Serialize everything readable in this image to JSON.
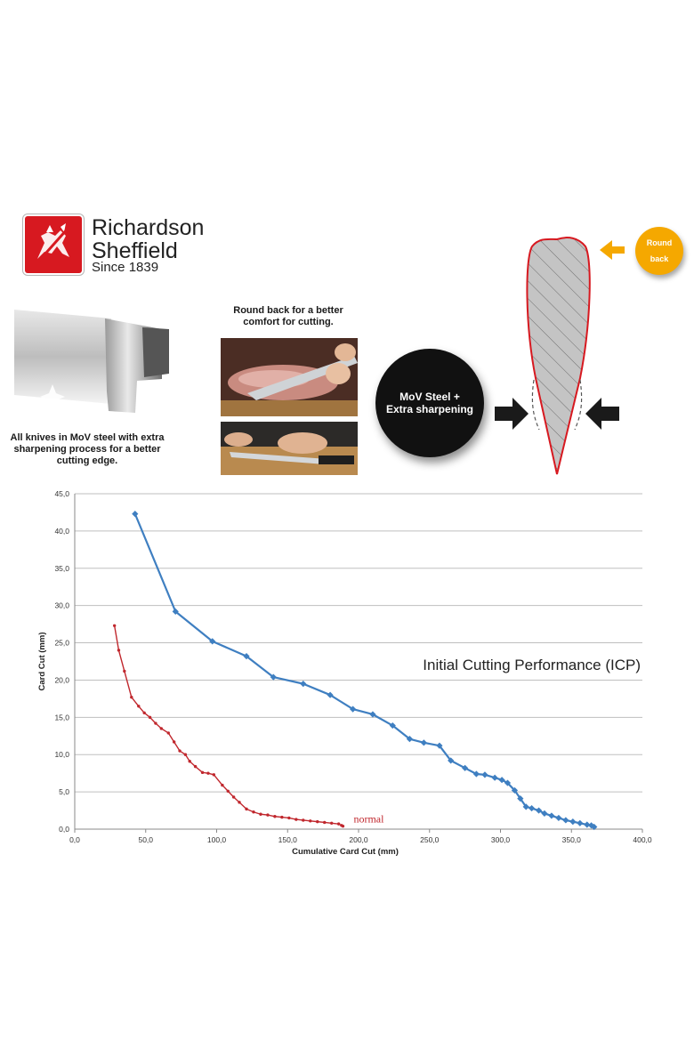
{
  "brand": {
    "line1": "Richardson",
    "line2": "Sheffield",
    "line3": "Since 1839",
    "logo_color": "#d71920"
  },
  "features": {
    "left_caption": "All knives in MoV steel with extra sharpening process for a better cutting edge.",
    "middle_caption": "Round back for a better comfort for cutting.",
    "circle_line1": "MoV Steel +",
    "circle_line2": "Extra sharpening",
    "badge_line1": "Round",
    "badge_line2": "back",
    "badge_color": "#f5a800",
    "blade_outline_color": "#d71920"
  },
  "chart_data": {
    "type": "line",
    "title": "Initial Cutting Performance (ICP)",
    "xlabel": "Cumulative Card Cut (mm)",
    "ylabel": "Card Cut (mm)",
    "xlim": [
      0,
      400
    ],
    "ylim": [
      0,
      45
    ],
    "x_ticks": [
      "0,0",
      "50,0",
      "100,0",
      "150,0",
      "200,0",
      "250,0",
      "300,0",
      "350,0",
      "400,0"
    ],
    "y_ticks": [
      "0,0",
      "5,0",
      "10,0",
      "15,0",
      "20,0",
      "25,0",
      "30,0",
      "35,0",
      "40,0",
      "45,0"
    ],
    "grid": "horizontal",
    "series": [
      {
        "name": "",
        "color": "#3f7fc1",
        "marker": "diamond",
        "x": [
          42.5,
          71,
          97,
          121,
          140,
          161,
          180,
          196,
          210,
          224,
          236,
          246,
          257,
          265,
          275,
          283,
          289,
          296,
          301,
          305,
          310,
          314,
          318,
          322,
          327,
          331,
          336,
          341,
          346,
          351,
          356,
          361,
          364,
          366
        ],
        "y": [
          42.3,
          29.2,
          25.2,
          23.2,
          20.4,
          19.5,
          18.0,
          16.1,
          15.4,
          13.9,
          12.1,
          11.6,
          11.2,
          9.2,
          8.2,
          7.4,
          7.3,
          6.9,
          6.6,
          6.2,
          5.2,
          4.1,
          3.0,
          2.8,
          2.5,
          2.1,
          1.8,
          1.5,
          1.2,
          1.0,
          0.8,
          0.6,
          0.5,
          0.3
        ]
      },
      {
        "name": "normal",
        "color": "#c0272d",
        "marker": "dot",
        "x": [
          28,
          31,
          35,
          40,
          45,
          49,
          53,
          57,
          61,
          66,
          70,
          74,
          78,
          81,
          85,
          90,
          94,
          98,
          104,
          108,
          112,
          116,
          121,
          126,
          131,
          136,
          141,
          146,
          151,
          156,
          161,
          166,
          171,
          176,
          181,
          186,
          188,
          189
        ],
        "y": [
          27.3,
          24.0,
          21.2,
          17.7,
          16.5,
          15.6,
          15.0,
          14.2,
          13.5,
          12.9,
          11.7,
          10.5,
          10.0,
          9.1,
          8.4,
          7.6,
          7.5,
          7.3,
          5.9,
          5.1,
          4.3,
          3.6,
          2.7,
          2.3,
          2.0,
          1.9,
          1.7,
          1.6,
          1.5,
          1.3,
          1.2,
          1.1,
          1.0,
          0.9,
          0.8,
          0.7,
          0.5,
          0.4
        ]
      }
    ]
  }
}
